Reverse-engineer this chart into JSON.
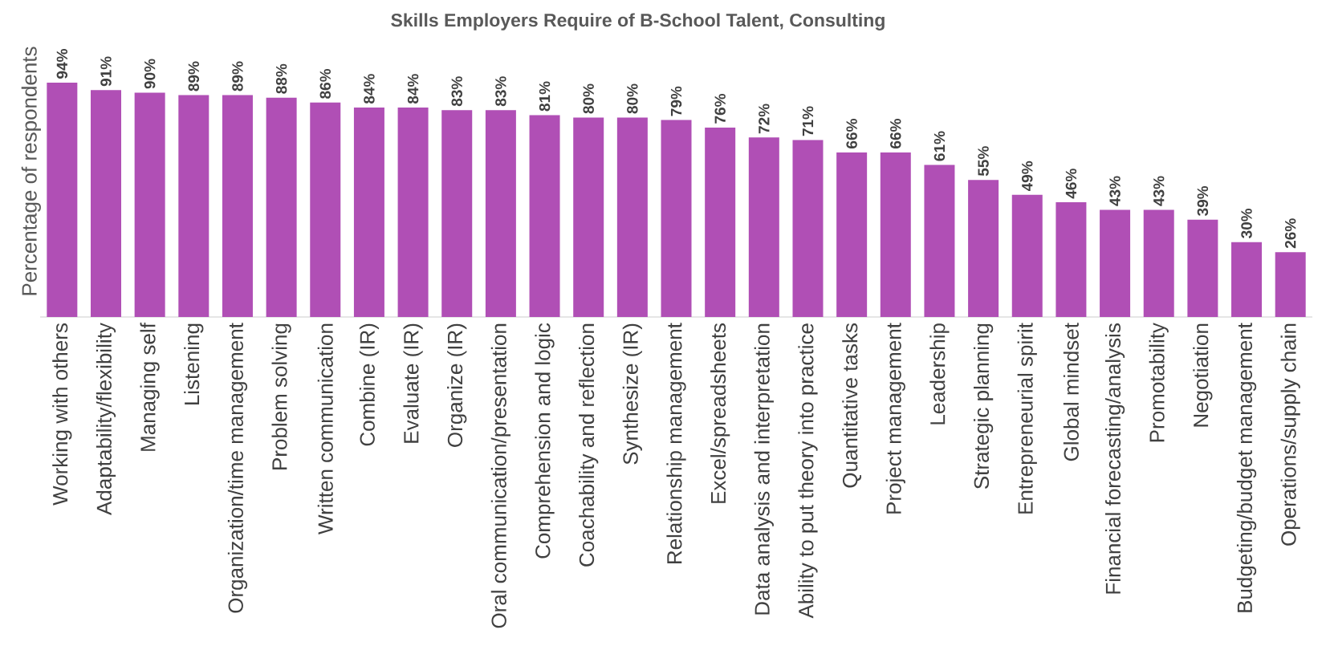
{
  "chart_data": {
    "type": "bar",
    "title": "Skills Employers Require of B-School Talent, Consulting",
    "ylabel": "Percentage of respondents",
    "color": "#b04fb5",
    "categories": [
      "Working with others",
      "Adaptability/flexibility",
      "Managing self",
      "Listening",
      "Organization/time management",
      "Problem solving",
      "Written communication",
      "Combine (IR)",
      "Evaluate (IR)",
      "Organize (IR)",
      "Oral communication/presentation",
      "Comprehension and logic",
      "Coachability and reflection",
      "Synthesize (IR)",
      "Relationship management",
      "Excel/spreadsheets",
      "Data analysis and interpretation",
      "Ability to put theory into practice",
      "Quantitative tasks",
      "Project management",
      "Leadership",
      "Strategic planning",
      "Entrepreneurial spirit",
      "Global mindset",
      "Financial forecasting/analysis",
      "Promotability",
      "Negotiation",
      "Budgeting/budget management",
      "Operations/supply chain"
    ],
    "values": [
      94,
      91,
      90,
      89,
      89,
      88,
      86,
      84,
      84,
      83,
      83,
      81,
      80,
      80,
      79,
      76,
      72,
      71,
      66,
      66,
      61,
      55,
      49,
      46,
      43,
      43,
      39,
      30,
      26
    ],
    "value_labels": [
      "94%",
      "91%",
      "90%",
      "89%",
      "89%",
      "88%",
      "86%",
      "84%",
      "84%",
      "83%",
      "83%",
      "81%",
      "80%",
      "80%",
      "79%",
      "76%",
      "72%",
      "71%",
      "66%",
      "66%",
      "61%",
      "55%",
      "49%",
      "46%",
      "43%",
      "43%",
      "39%",
      "30%",
      "26%"
    ]
  }
}
